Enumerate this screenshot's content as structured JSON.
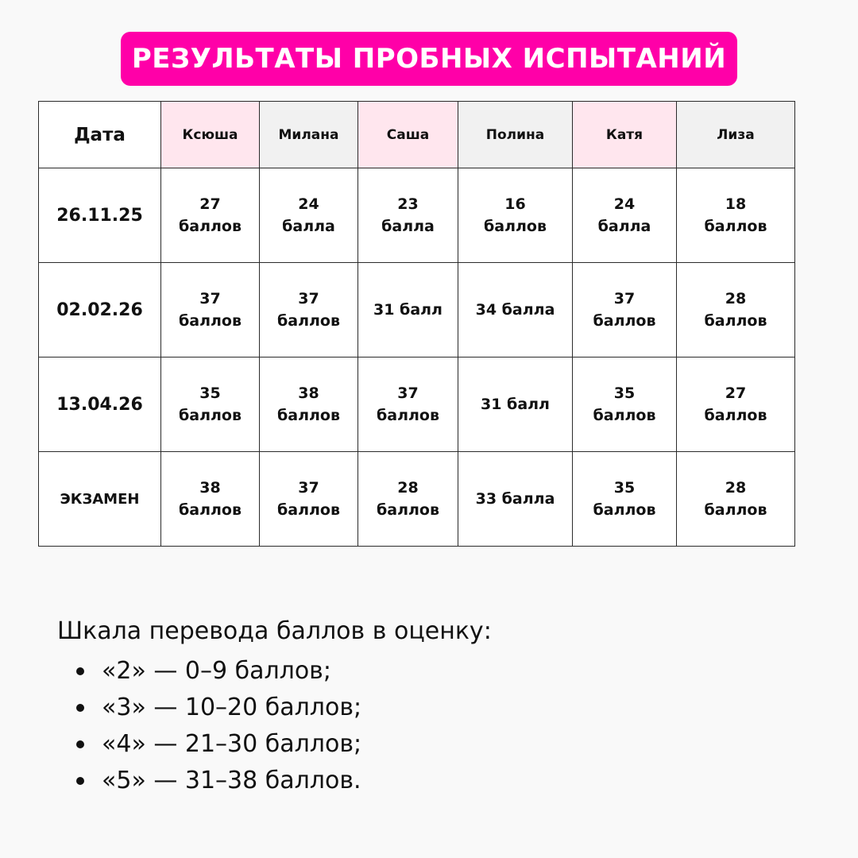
{
  "title": "РЕЗУЛЬТАТЫ ПРОБНЫХ ИСПЫТАНИЙ",
  "colors": {
    "accent": "#ff00a8",
    "pink_header": "#ffe6ee",
    "grey_cell": "#f1f1f1",
    "exam_row": "#fde5e8"
  },
  "table": {
    "corner": "Дата",
    "students": [
      "Ксюша",
      "Милана",
      "Саша",
      "Полина",
      "Катя",
      "Лиза"
    ],
    "rows": [
      {
        "date": "26.11.25",
        "scores": [
          [
            "27",
            "баллов"
          ],
          [
            "24",
            "балла"
          ],
          [
            "23",
            "балла"
          ],
          [
            "16",
            "баллов"
          ],
          [
            "24",
            "балла"
          ],
          [
            "18",
            "баллов"
          ]
        ]
      },
      {
        "date": "02.02.26",
        "scores": [
          [
            "37",
            "баллов"
          ],
          [
            "37",
            "баллов"
          ],
          [
            "31 балл"
          ],
          [
            "34 балла"
          ],
          [
            "37",
            "баллов"
          ],
          [
            "28",
            "баллов"
          ]
        ]
      },
      {
        "date": "13.04.26",
        "scores": [
          [
            "35",
            "баллов"
          ],
          [
            "38",
            "баллов"
          ],
          [
            "37",
            "баллов"
          ],
          [
            "31 балл"
          ],
          [
            "35",
            "баллов"
          ],
          [
            "27",
            "баллов"
          ]
        ]
      },
      {
        "date": "ЭКЗАМЕН",
        "scores": [
          [
            "38",
            "баллов"
          ],
          [
            "37",
            "баллов"
          ],
          [
            "28",
            "баллов"
          ],
          [
            "33 балла"
          ],
          [
            "35",
            "баллов"
          ],
          [
            "28",
            "баллов"
          ]
        ]
      }
    ]
  },
  "scale": {
    "title": "Шкала перевода баллов в оценку:",
    "items": [
      "«2» — 0–9 баллов;",
      "«3» — 10–20 баллов;",
      "«4» — 21–30 баллов;",
      "«5» — 31–38 баллов."
    ]
  }
}
